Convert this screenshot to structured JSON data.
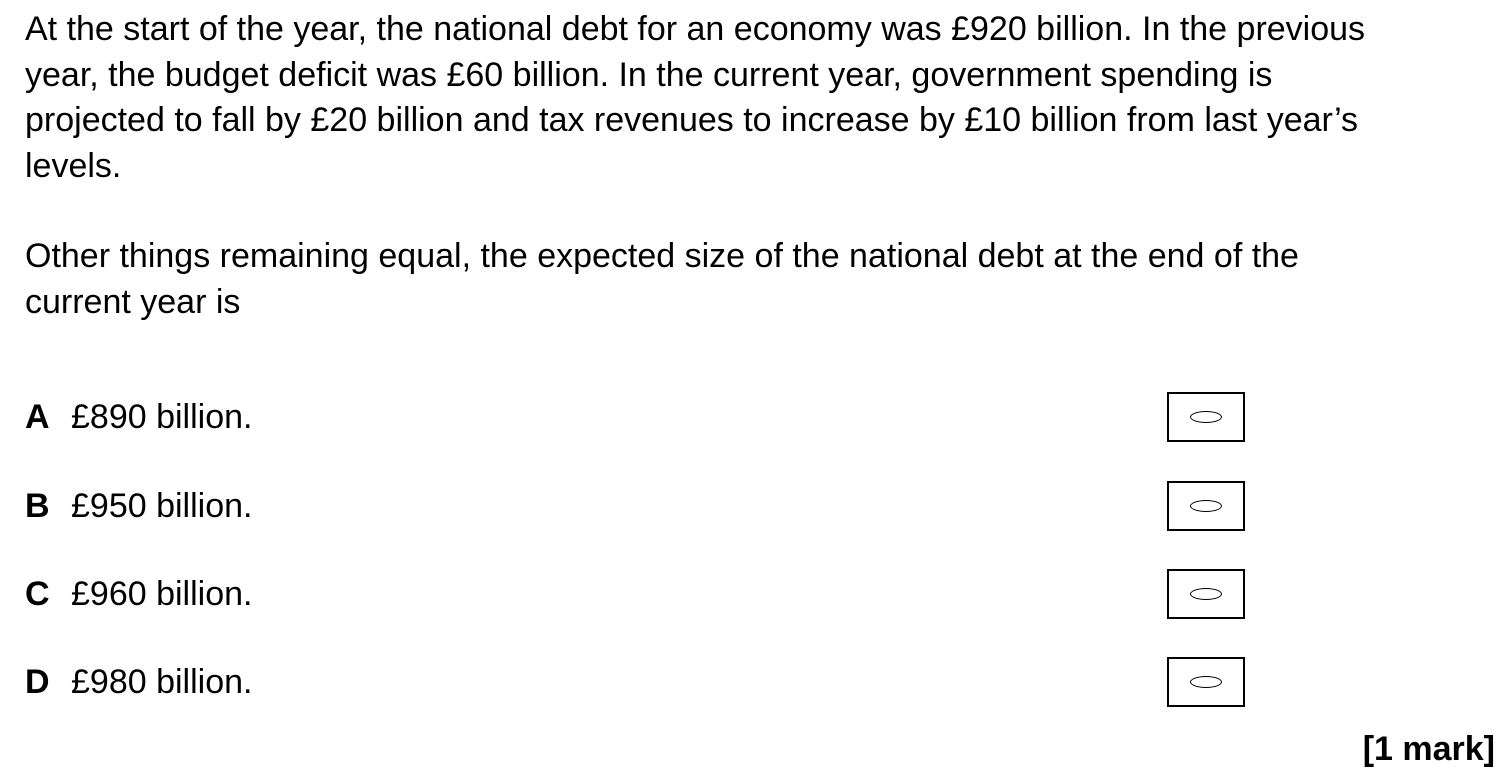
{
  "question": {
    "stem_lines": [
      "At the start of the year, the national debt for an economy was £920 billion.  In the previous",
      "year, the budget deficit was £60 billion.  In the current year, government spending is",
      "projected to fall by £20 billion and tax revenues to increase by £10 billion from last year’s",
      "levels."
    ],
    "prompt_lines": [
      "Other things remaining equal, the expected size of the national debt at the end of the",
      "current year is"
    ]
  },
  "options": [
    {
      "letter": "A",
      "text": "£890 billion.",
      "selected": false
    },
    {
      "letter": "B",
      "text": "£950 billion.",
      "selected": false
    },
    {
      "letter": "C",
      "text": "£960 billion.",
      "selected": false
    },
    {
      "letter": "D",
      "text": "£980 billion.",
      "selected": false
    }
  ],
  "marks": "[1 mark]"
}
